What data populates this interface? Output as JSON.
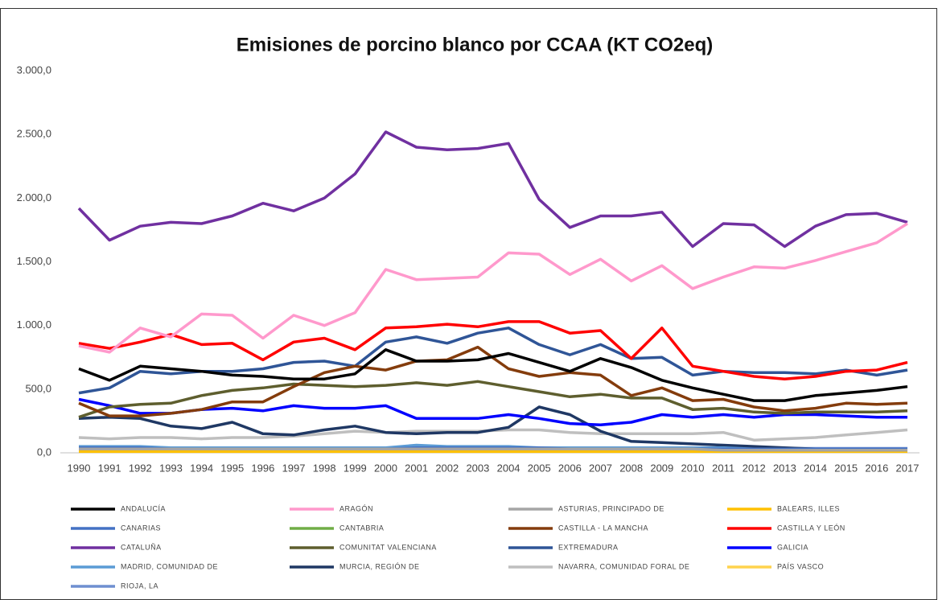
{
  "chart_data": {
    "type": "line",
    "title": "Emisiones de porcino blanco por CCAA (KT CO2eq)",
    "categories": [
      "1990",
      "1991",
      "1992",
      "1993",
      "1994",
      "1995",
      "1996",
      "1997",
      "1998",
      "1999",
      "2000",
      "2001",
      "2002",
      "2003",
      "2004",
      "2005",
      "2006",
      "2007",
      "2008",
      "2009",
      "2010",
      "2011",
      "2012",
      "2013",
      "2014",
      "2015",
      "2016",
      "2017"
    ],
    "ylim": [
      0,
      3000
    ],
    "yticks": [
      {
        "value": 0,
        "label": "0,0"
      },
      {
        "value": 500,
        "label": "500,0"
      },
      {
        "value": 1000,
        "label": "1.000,0"
      },
      {
        "value": 1500,
        "label": "1.500,0"
      },
      {
        "value": 2000,
        "label": "2.000,0"
      },
      {
        "value": 2500,
        "label": "2.500,0"
      },
      {
        "value": 3000,
        "label": "3.000,0"
      }
    ],
    "grid": false,
    "legend": "bottom",
    "series": [
      {
        "name": "ANDALUCÍA",
        "color": "#000000",
        "values": [
          660,
          570,
          680,
          660,
          640,
          610,
          600,
          580,
          580,
          620,
          810,
          720,
          720,
          730,
          780,
          710,
          640,
          740,
          670,
          570,
          510,
          460,
          410,
          410,
          450,
          470,
          490,
          520
        ]
      },
      {
        "name": "ARAGÓN",
        "color": "#ff99cc",
        "values": [
          840,
          790,
          980,
          910,
          1090,
          1080,
          900,
          1080,
          1000,
          1100,
          1440,
          1360,
          1370,
          1380,
          1570,
          1560,
          1400,
          1520,
          1350,
          1470,
          1290,
          1380,
          1460,
          1450,
          1510,
          1580,
          1650,
          1800
        ]
      },
      {
        "name": "ASTURIAS, PRINCIPADO DE",
        "color": "#a5a5a5",
        "values": [
          30,
          30,
          30,
          30,
          30,
          30,
          30,
          30,
          30,
          30,
          30,
          30,
          30,
          30,
          30,
          30,
          30,
          30,
          30,
          30,
          30,
          20,
          20,
          20,
          20,
          20,
          20,
          20
        ]
      },
      {
        "name": "BALEARS, ILLES",
        "color": "#ffc000",
        "values": [
          10,
          10,
          10,
          10,
          10,
          10,
          10,
          10,
          10,
          10,
          10,
          10,
          10,
          10,
          10,
          10,
          10,
          10,
          10,
          10,
          10,
          10,
          10,
          10,
          10,
          10,
          10,
          10
        ]
      },
      {
        "name": "CANARIAS",
        "color": "#4472c4",
        "values": [
          40,
          40,
          40,
          30,
          30,
          30,
          30,
          30,
          30,
          30,
          30,
          40,
          40,
          40,
          40,
          40,
          30,
          30,
          30,
          30,
          30,
          30,
          30,
          30,
          30,
          30,
          30,
          30
        ]
      },
      {
        "name": "CANTABRIA",
        "color": "#70ad47",
        "values": [
          20,
          20,
          20,
          20,
          20,
          20,
          20,
          20,
          20,
          20,
          20,
          20,
          20,
          20,
          20,
          20,
          20,
          20,
          20,
          20,
          20,
          20,
          20,
          20,
          20,
          20,
          20,
          20
        ]
      },
      {
        "name": "CASTILLA - LA MANCHA",
        "color": "#843c0c",
        "values": [
          390,
          290,
          290,
          310,
          340,
          400,
          400,
          520,
          630,
          680,
          650,
          720,
          730,
          830,
          660,
          600,
          630,
          610,
          450,
          510,
          410,
          420,
          360,
          330,
          350,
          390,
          380,
          390
        ]
      },
      {
        "name": "CASTILLA Y LEÓN",
        "color": "#ff0000",
        "values": [
          860,
          820,
          870,
          930,
          850,
          860,
          730,
          870,
          900,
          810,
          980,
          990,
          1010,
          990,
          1030,
          1030,
          940,
          960,
          740,
          980,
          680,
          640,
          600,
          580,
          600,
          640,
          650,
          710
        ]
      },
      {
        "name": "CATALUÑA",
        "color": "#7030a0",
        "values": [
          1920,
          1670,
          1780,
          1810,
          1800,
          1860,
          1960,
          1900,
          2000,
          2190,
          2520,
          2400,
          2380,
          2390,
          2430,
          1990,
          1770,
          1860,
          1860,
          1890,
          1620,
          1800,
          1790,
          1620,
          1780,
          1870,
          1880,
          1810
        ]
      },
      {
        "name": "COMUNITAT VALENCIANA",
        "color": "#5e5e2e",
        "values": [
          280,
          360,
          380,
          390,
          450,
          490,
          510,
          540,
          530,
          520,
          530,
          550,
          530,
          560,
          520,
          480,
          440,
          460,
          430,
          430,
          340,
          350,
          320,
          310,
          320,
          320,
          320,
          330
        ]
      },
      {
        "name": "EXTREMADURA",
        "color": "#2f5597",
        "values": [
          470,
          510,
          640,
          620,
          640,
          640,
          660,
          710,
          720,
          680,
          870,
          910,
          860,
          940,
          980,
          850,
          770,
          850,
          740,
          750,
          610,
          640,
          630,
          630,
          620,
          650,
          610,
          650
        ]
      },
      {
        "name": "GALICIA",
        "color": "#0000ff",
        "values": [
          420,
          370,
          310,
          310,
          340,
          350,
          330,
          370,
          350,
          350,
          370,
          270,
          270,
          270,
          300,
          270,
          230,
          220,
          240,
          300,
          280,
          300,
          280,
          300,
          300,
          290,
          280,
          280
        ]
      },
      {
        "name": "MADRID, COMUNIDAD DE",
        "color": "#5b9bd5",
        "values": [
          50,
          50,
          50,
          40,
          40,
          40,
          40,
          40,
          40,
          40,
          40,
          60,
          50,
          50,
          50,
          40,
          40,
          40,
          40,
          40,
          40,
          40,
          30,
          30,
          30,
          30,
          30,
          30
        ]
      },
      {
        "name": "MURCIA, REGIÓN DE",
        "color": "#1f3864",
        "values": [
          270,
          280,
          270,
          210,
          190,
          240,
          150,
          140,
          180,
          210,
          160,
          150,
          160,
          160,
          200,
          360,
          300,
          170,
          90,
          80,
          70,
          60,
          50,
          40,
          30,
          30,
          30,
          30
        ]
      },
      {
        "name": "NAVARRA, COMUNIDAD FORAL DE",
        "color": "#bfbfbf",
        "values": [
          120,
          110,
          120,
          120,
          110,
          120,
          120,
          130,
          150,
          170,
          160,
          170,
          170,
          170,
          180,
          180,
          160,
          150,
          150,
          150,
          150,
          160,
          100,
          110,
          120,
          140,
          160,
          180
        ]
      },
      {
        "name": "PAÍS VASCO",
        "color": "#ffd34d",
        "values": [
          20,
          20,
          20,
          20,
          20,
          20,
          20,
          20,
          20,
          20,
          20,
          20,
          20,
          20,
          20,
          20,
          20,
          20,
          20,
          20,
          20,
          20,
          20,
          20,
          20,
          20,
          20,
          20
        ]
      },
      {
        "name": "RIOJA, LA",
        "color": "#6f8fd0",
        "values": [
          35,
          35,
          35,
          35,
          35,
          35,
          35,
          35,
          35,
          35,
          35,
          35,
          35,
          35,
          35,
          35,
          35,
          35,
          35,
          35,
          35,
          35,
          35,
          35,
          35,
          35,
          35,
          35
        ]
      }
    ]
  }
}
